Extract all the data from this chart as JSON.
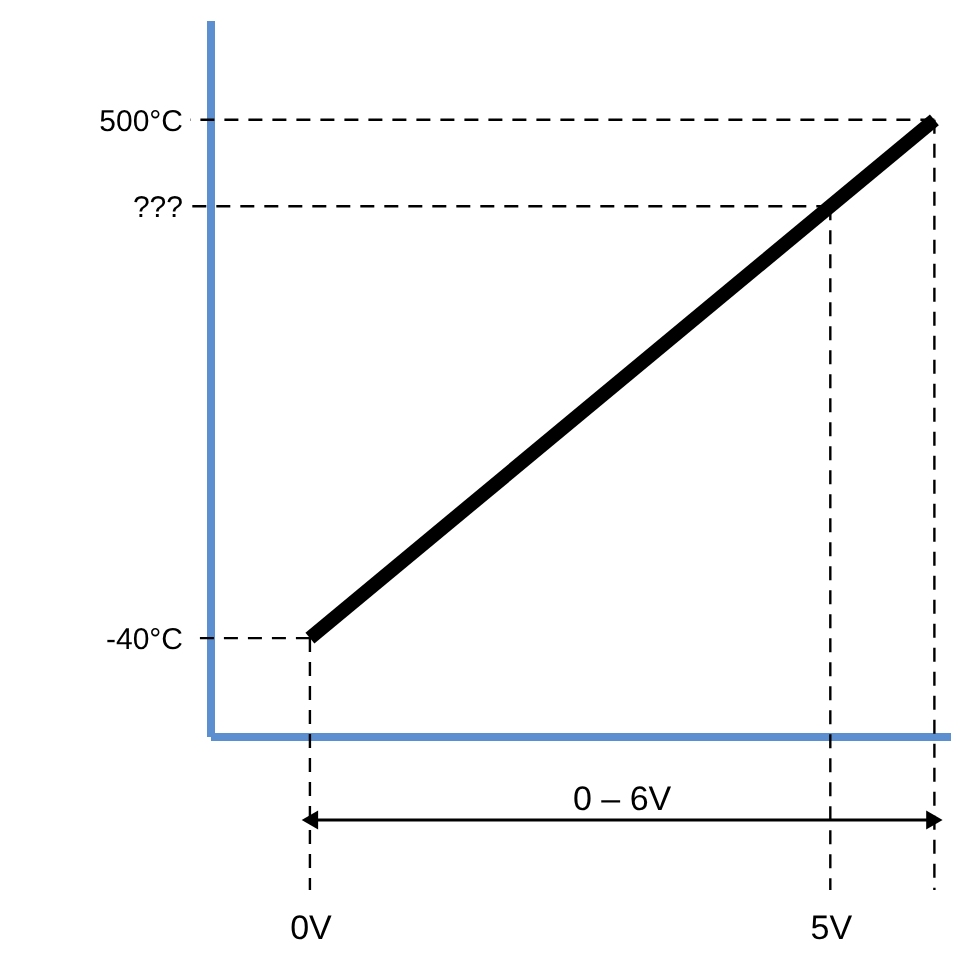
{
  "chart_data": {
    "type": "line",
    "x": [
      0,
      6
    ],
    "series": [
      {
        "color": "#000000",
        "values": [
          -40,
          500
        ]
      }
    ],
    "xlim": [
      -0.96,
      6.15
    ],
    "ylim": [
      -142,
      604
    ],
    "xticks": [
      {
        "value": 0,
        "label": "0V"
      },
      {
        "value": 5,
        "label": "5V"
      }
    ],
    "yticks": [
      {
        "value": -40,
        "label": "-40°C"
      },
      {
        "value": 410,
        "label": "???"
      },
      {
        "value": 500,
        "label": "500°C"
      }
    ],
    "ref_lines": [
      {
        "axis": "x",
        "value": 0,
        "line_style": "dashed",
        "color": "#000000"
      },
      {
        "axis": "x",
        "value": 5,
        "line_style": "dashed",
        "color": "#000000"
      },
      {
        "axis": "x",
        "value": 6,
        "line_style": "dashed",
        "color": "#000000"
      },
      {
        "axis": "y",
        "value": -40,
        "line_style": "dashed",
        "color": "#000000"
      },
      {
        "axis": "y",
        "value": 410,
        "line_style": "dashed",
        "color": "#000000"
      },
      {
        "axis": "y",
        "value": 500,
        "line_style": "dashed",
        "color": "#000000"
      }
    ],
    "annotations": [
      "0 – 6V"
    ],
    "grid": false,
    "marker": "none",
    "line_style": "solid"
  }
}
